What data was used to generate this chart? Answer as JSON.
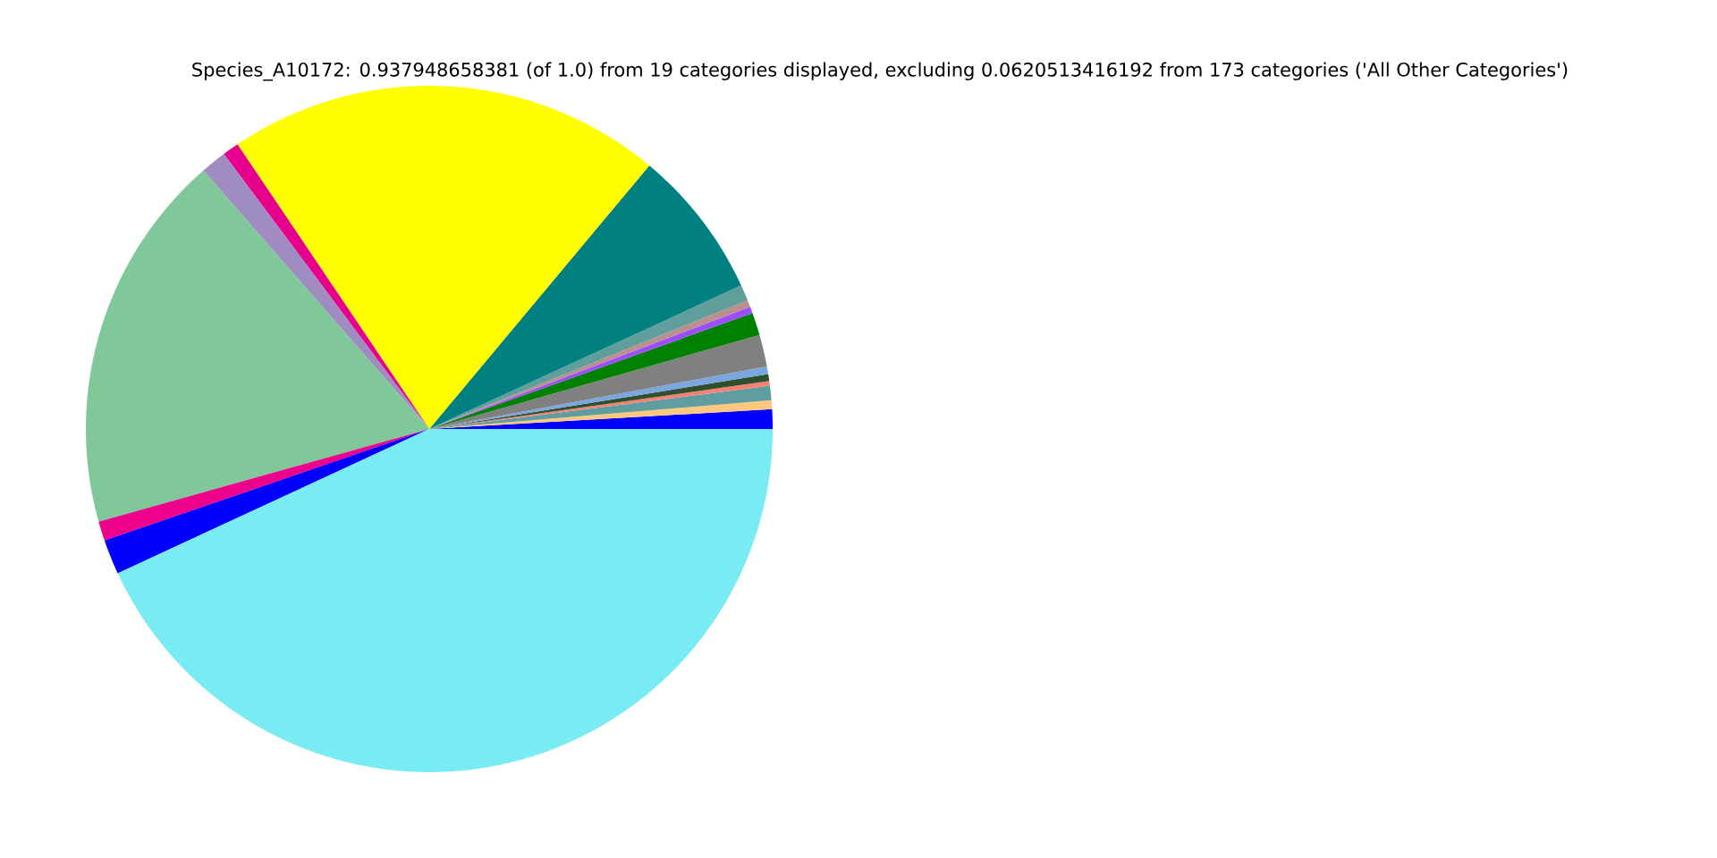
{
  "chart_data": {
    "type": "pie",
    "title": "Species_A10172: 0.937948658381 (of 1.0) from 19 categories displayed, excluding 0.0620513416192 from 173 categories ('All Other Categories')",
    "categories": [
      null,
      null,
      null,
      null,
      null,
      null,
      null,
      null,
      null,
      null,
      null,
      null,
      null,
      null,
      null,
      null,
      null,
      null,
      null
    ],
    "values": [
      0.92,
      0.42,
      0.67,
      0.22,
      0.33,
      0.36,
      1.5,
      1.06,
      0.31,
      0.33,
      0.75,
      7.06,
      20.5,
      0.78,
      1.22,
      17.92,
      0.92,
      1.64,
      43.09
    ],
    "colors": [
      "#0000ff",
      "#ffc87c",
      "#5f9ea0",
      "#fa8072",
      "#2f4f2f",
      "#7aa7e0",
      "#808080",
      "#008000",
      "#9b4dff",
      "#bc8f8f",
      "#5f9e9a",
      "#008080",
      "#ffff00",
      "#e6008c",
      "#a08cc0",
      "#80c89a",
      "#ec008c",
      "#0000ff",
      "#78ecf2"
    ]
  }
}
